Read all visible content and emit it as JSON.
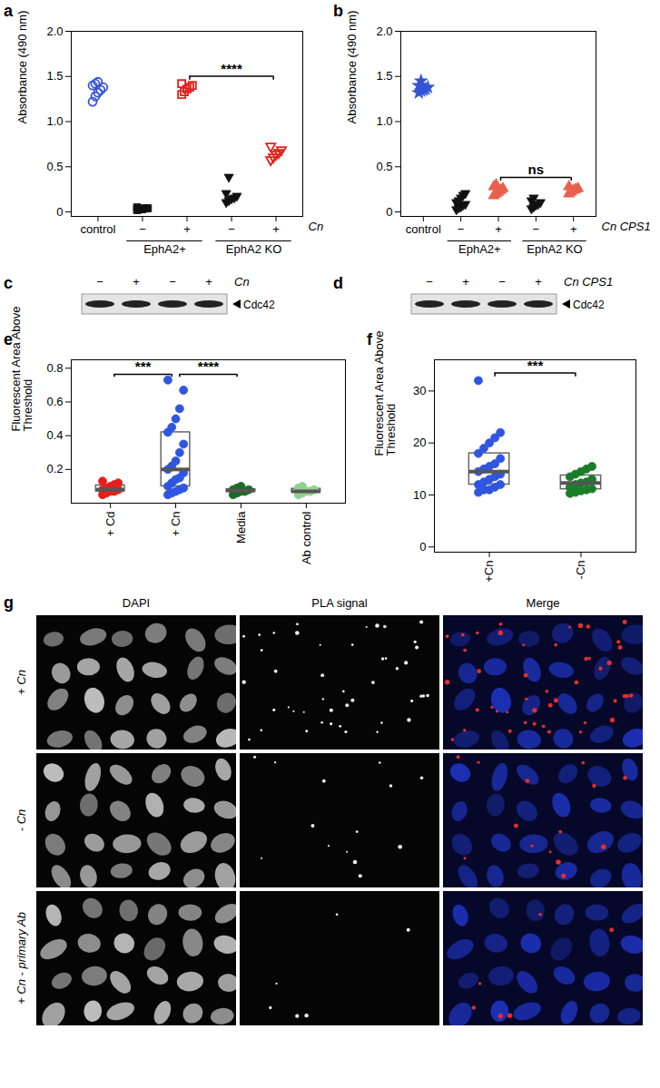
{
  "chart_data": [
    {
      "panel": "a",
      "type": "scatter",
      "y_label": "Absorbance (490 nm)",
      "categories": [
        "control",
        "−",
        "+",
        "−",
        "+"
      ],
      "category_groups": [
        null,
        "EphA2+",
        "EphA2+",
        "EphA2 KO",
        "EphA2 KO"
      ],
      "treatment_label": "Cn",
      "values": [
        [
          1.22,
          1.28,
          1.32,
          1.35,
          1.38,
          1.4,
          1.42,
          1.44
        ],
        [
          0.02,
          0.03,
          0.03,
          0.04,
          0.04,
          0.05
        ],
        [
          1.3,
          1.33,
          1.36,
          1.38,
          1.4,
          1.42
        ],
        [
          0.1,
          0.12,
          0.14,
          0.15,
          0.17,
          0.2,
          0.38
        ],
        [
          0.57,
          0.6,
          0.63,
          0.65,
          0.68,
          0.72
        ]
      ],
      "colors": [
        "#3454d6",
        "#111111",
        "#e3211c",
        "#111111",
        "#e3211c"
      ],
      "markers": [
        "circle-open",
        "square",
        "square-open",
        "triangle-down",
        "triangle-down-open"
      ],
      "ylim": [
        -0.05,
        2.0
      ],
      "yticks": [
        0,
        0.5,
        {
          "value": 1,
          "label": "1.0"
        },
        1.5,
        {
          "value": 2,
          "label": "2.0"
        }
      ],
      "annotations": [
        {
          "text": "****",
          "from": 2,
          "to": 4
        }
      ],
      "grid": false
    },
    {
      "panel": "b",
      "type": "scatter",
      "y_label": "Absorbance (490 nm)",
      "categories": [
        "control",
        "−",
        "+",
        "−",
        "+"
      ],
      "category_groups": [
        null,
        "EphA2+",
        "EphA2+",
        "EphA2 KO",
        "EphA2 KO"
      ],
      "treatment_label": "Cn CPS1",
      "values": [
        [
          1.32,
          1.34,
          1.35,
          1.36,
          1.38,
          1.4,
          1.45
        ],
        [
          0.02,
          0.04,
          0.05,
          0.07,
          0.08,
          0.1,
          0.12,
          0.15,
          0.18,
          0.2
        ],
        [
          0.18,
          0.2,
          0.22,
          0.24,
          0.26,
          0.28,
          0.3
        ],
        [
          0.03,
          0.05,
          0.07,
          0.08,
          0.1,
          0.12,
          0.15
        ],
        [
          0.2,
          0.22,
          0.24,
          0.25,
          0.26,
          0.28
        ]
      ],
      "colors": [
        "#3454d6",
        "#111111",
        "#e8604c",
        "#111111",
        "#e8604c"
      ],
      "markers": [
        "star",
        "triangle-down",
        "triangle",
        "triangle-down",
        "triangle"
      ],
      "ylim": [
        -0.05,
        2.0
      ],
      "yticks": [
        0,
        0.5,
        {
          "value": 1,
          "label": "1.0"
        },
        1.5,
        {
          "value": 2,
          "label": "2.0"
        }
      ],
      "annotations": [
        {
          "text": "ns",
          "from": 2,
          "to": 4
        }
      ],
      "grid": false
    },
    {
      "panel": "e",
      "type": "box",
      "y_label": "Fluorescent Area Above Threshold",
      "categories": [
        "+ Cd",
        "+ Cn",
        "Media",
        "Ab control"
      ],
      "values": [
        [
          0.05,
          0.06,
          0.07,
          0.07,
          0.08,
          0.08,
          0.09,
          0.1,
          0.11,
          0.12,
          0.13
        ],
        [
          0.05,
          0.06,
          0.07,
          0.08,
          0.09,
          0.1,
          0.12,
          0.14,
          0.15,
          0.18,
          0.2,
          0.22,
          0.25,
          0.3,
          0.35,
          0.42,
          0.45,
          0.5,
          0.56,
          0.67,
          0.73
        ],
        [
          0.05,
          0.06,
          0.07,
          0.07,
          0.08,
          0.08,
          0.09,
          0.1
        ],
        [
          0.05,
          0.06,
          0.07,
          0.07,
          0.08,
          0.09,
          0.1
        ]
      ],
      "colors": [
        "#e3211c",
        "#2f56e0",
        "#1e6b2a",
        "#8fd18f"
      ],
      "markers": [
        "circle",
        "circle",
        "circle",
        "circle"
      ],
      "ylim": [
        0,
        0.85
      ],
      "yticks": [
        0.2,
        0.4,
        0.6,
        0.8
      ],
      "annotations": [
        {
          "text": "***",
          "from": 0,
          "to": 1
        },
        {
          "text": "****",
          "from": 1,
          "to": 2
        }
      ],
      "grid": false
    },
    {
      "panel": "f",
      "type": "box",
      "y_label": "Fluorescent Area Above Threshold",
      "categories": [
        "+Cn",
        "-Cn"
      ],
      "values": [
        [
          10.5,
          11,
          11,
          11.5,
          12,
          12,
          12.5,
          13,
          13.5,
          14,
          14.5,
          15,
          15.5,
          16,
          17,
          18,
          19,
          20,
          21,
          22,
          32
        ],
        [
          10.3,
          10.5,
          10.8,
          11,
          11.2,
          11.5,
          12,
          12.3,
          12.5,
          13,
          13.5,
          14,
          14.5,
          15,
          15.5
        ]
      ],
      "colors": [
        "#2f56e0",
        "#1a7d2a"
      ],
      "markers": [
        "circle",
        "circle"
      ],
      "ylim": [
        -1,
        36
      ],
      "yticks": [
        0,
        10,
        20,
        30
      ],
      "annotations": [
        {
          "text": "***",
          "from": 0,
          "to": 1
        }
      ],
      "grid": false
    }
  ],
  "blots": [
    {
      "panel": "c",
      "lanes": [
        "−",
        "+",
        "−",
        "+"
      ],
      "treatment_label": "Cn",
      "band_label": "Cdc42"
    },
    {
      "panel": "d",
      "lanes": [
        "−",
        "+",
        "−",
        "+"
      ],
      "treatment_label": "Cn CPS1",
      "band_label": "Cdc42"
    }
  ],
  "micrographs": {
    "panel": "g",
    "columns": [
      "DAPI",
      "PLA signal",
      "Merge"
    ],
    "rows": [
      "+ Cn",
      "- Cn",
      "+ Cn - primary Ab"
    ]
  }
}
